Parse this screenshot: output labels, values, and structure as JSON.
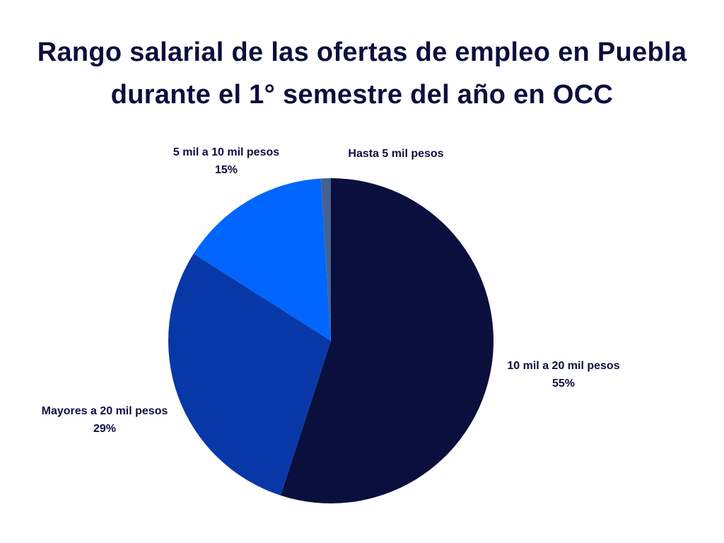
{
  "chart_data": {
    "type": "pie",
    "title": [
      "Rango salarial de las ofertas de empleo en Puebla",
      "durante el 1° semestre del año en OCC"
    ],
    "categories": [
      "10 mil a 20 mil pesos",
      "Mayores a 20 mil pesos",
      "5 mil a 10 mil pesos",
      "Hasta 5 mil pesos"
    ],
    "values": [
      55,
      29,
      15,
      1
    ],
    "value_labels": [
      "55%",
      "29%",
      "15%",
      null
    ],
    "colors": [
      "#0b0f3d",
      "#0838a8",
      "#0066ff",
      "#44628f"
    ]
  }
}
